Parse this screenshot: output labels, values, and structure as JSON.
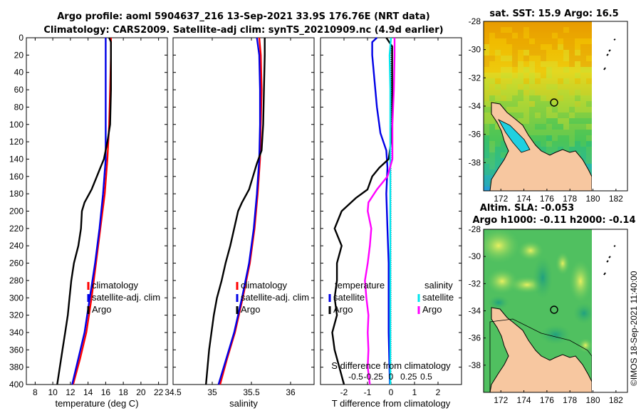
{
  "titles": {
    "line1": "Argo profile: aoml 5904637_216 13-Sep-2021 33.9S 176.76E (NRT data)",
    "line2": "Climatology: CARS2009. Satellite-adj clim: synTS_20210909.nc (4.9d earlier)"
  },
  "credit": "©IMOS 18-Sep-2021 11:40:00",
  "colors": {
    "climatology": "#ff0000",
    "satellite": "#0000e6",
    "argo": "#000000",
    "s_satellite": "#00e5ee",
    "s_argo": "#ff00ff"
  },
  "chart_data": [
    {
      "id": "temperature",
      "type": "line",
      "xlabel": "temperature (deg C)",
      "ylabel": "",
      "xlim": [
        7,
        23
      ],
      "ylim": [
        0,
        400
      ],
      "y_inverted": true,
      "xticks": [
        8,
        10,
        12,
        14,
        16,
        18,
        20,
        22
      ],
      "yticks": [
        0,
        20,
        40,
        60,
        80,
        100,
        120,
        140,
        160,
        180,
        200,
        220,
        240,
        260,
        280,
        300,
        320,
        340,
        360,
        380,
        400
      ],
      "legend": [
        "climatology",
        "satellite-adj. clim",
        "Argo"
      ],
      "series": [
        {
          "name": "climatology",
          "color": "#ff0000",
          "points": [
            [
              16.6,
              0
            ],
            [
              16.6,
              20
            ],
            [
              16.5,
              60
            ],
            [
              16.4,
              100
            ],
            [
              16.2,
              140
            ],
            [
              15.9,
              180
            ],
            [
              15.4,
              220
            ],
            [
              14.9,
              260
            ],
            [
              14.4,
              300
            ],
            [
              13.8,
              340
            ],
            [
              13.1,
              370
            ],
            [
              12.3,
              400
            ]
          ]
        },
        {
          "name": "satellite-adj. clim",
          "color": "#0000e6",
          "points": [
            [
              16.0,
              0
            ],
            [
              16.0,
              20
            ],
            [
              16.0,
              60
            ],
            [
              16.0,
              100
            ],
            [
              16.0,
              140
            ],
            [
              15.7,
              180
            ],
            [
              15.3,
              220
            ],
            [
              14.8,
              260
            ],
            [
              14.2,
              300
            ],
            [
              13.6,
              340
            ],
            [
              12.9,
              370
            ],
            [
              12.2,
              400
            ]
          ]
        },
        {
          "name": "Argo",
          "color": "#000000",
          "points": [
            [
              16.4,
              0
            ],
            [
              16.6,
              5
            ],
            [
              16.6,
              20
            ],
            [
              16.6,
              60
            ],
            [
              16.5,
              100
            ],
            [
              16.2,
              120
            ],
            [
              15.8,
              140
            ],
            [
              15.4,
              150
            ],
            [
              15.0,
              160
            ],
            [
              14.4,
              175
            ],
            [
              13.6,
              190
            ],
            [
              13.3,
              200
            ],
            [
              13.2,
              220
            ],
            [
              12.9,
              240
            ],
            [
              12.4,
              260
            ],
            [
              12.1,
              280
            ],
            [
              11.9,
              300
            ],
            [
              11.7,
              320
            ],
            [
              11.4,
              340
            ],
            [
              11.1,
              360
            ],
            [
              10.8,
              380
            ],
            [
              10.5,
              400
            ]
          ]
        }
      ]
    },
    {
      "id": "salinity",
      "type": "line",
      "xlabel": "salinity",
      "xlim": [
        34.5,
        36.3
      ],
      "ylim": [
        0,
        400
      ],
      "y_inverted": true,
      "xticks": [
        34.5,
        35,
        35.5,
        36
      ],
      "xtick_labels": [
        "34.5",
        "35",
        "35.5",
        "36"
      ],
      "legend": [
        "climatology",
        "satellite-adj. clim",
        "Argo"
      ],
      "series": [
        {
          "name": "climatology",
          "color": "#ff0000",
          "points": [
            [
              35.6,
              0
            ],
            [
              35.62,
              20
            ],
            [
              35.63,
              60
            ],
            [
              35.62,
              100
            ],
            [
              35.61,
              140
            ],
            [
              35.58,
              180
            ],
            [
              35.54,
              220
            ],
            [
              35.48,
              260
            ],
            [
              35.39,
              300
            ],
            [
              35.29,
              340
            ],
            [
              35.19,
              370
            ],
            [
              35.1,
              400
            ]
          ]
        },
        {
          "name": "satellite-adj. clim",
          "color": "#0000e6",
          "points": [
            [
              35.57,
              0
            ],
            [
              35.6,
              20
            ],
            [
              35.61,
              60
            ],
            [
              35.61,
              100
            ],
            [
              35.6,
              140
            ],
            [
              35.57,
              180
            ],
            [
              35.53,
              220
            ],
            [
              35.47,
              260
            ],
            [
              35.38,
              300
            ],
            [
              35.28,
              340
            ],
            [
              35.18,
              370
            ],
            [
              35.08,
              400
            ]
          ]
        },
        {
          "name": "Argo",
          "color": "#000000",
          "points": [
            [
              35.67,
              0
            ],
            [
              35.67,
              20
            ],
            [
              35.66,
              60
            ],
            [
              35.65,
              100
            ],
            [
              35.63,
              130
            ],
            [
              35.57,
              145
            ],
            [
              35.52,
              160
            ],
            [
              35.47,
              175
            ],
            [
              35.38,
              190
            ],
            [
              35.33,
              200
            ],
            [
              35.28,
              220
            ],
            [
              35.23,
              240
            ],
            [
              35.17,
              260
            ],
            [
              35.12,
              280
            ],
            [
              35.06,
              300
            ],
            [
              35.02,
              320
            ],
            [
              34.99,
              340
            ],
            [
              34.96,
              360
            ],
            [
              34.94,
              380
            ],
            [
              34.92,
              400
            ]
          ]
        }
      ]
    },
    {
      "id": "difference",
      "type": "line",
      "xlabel": "T difference from climatology",
      "x2label": "S difference from climatology",
      "xlim": [
        -3,
        3
      ],
      "x2lim": [
        -1,
        1
      ],
      "ylim": [
        0,
        400
      ],
      "y_inverted": true,
      "xticks": [
        -2,
        -1,
        0,
        1,
        2
      ],
      "x2ticks": [
        -0.5,
        -0.25,
        0,
        0.25,
        0.5
      ],
      "x2tick_labels": [
        "-0.5",
        "-0.25",
        "0",
        "0.25",
        "0.5"
      ],
      "legend_titles": [
        "temperature",
        "salinity"
      ],
      "legend": [
        "satellite",
        "Argo",
        "satellite",
        "Argo"
      ],
      "series": [
        {
          "name": "T satellite",
          "color": "#0000e6",
          "points": [
            [
              -0.6,
              0
            ],
            [
              -0.8,
              5
            ],
            [
              -0.8,
              20
            ],
            [
              -0.7,
              50
            ],
            [
              -0.6,
              80
            ],
            [
              -0.45,
              110
            ],
            [
              -0.2,
              130
            ],
            [
              -0.15,
              150
            ],
            [
              -0.2,
              180
            ],
            [
              -0.15,
              220
            ],
            [
              -0.1,
              260
            ],
            [
              -0.1,
              300
            ],
            [
              -0.1,
              340
            ],
            [
              -0.05,
              400
            ]
          ]
        },
        {
          "name": "T Argo",
          "color": "#000000",
          "points": [
            [
              -0.2,
              0
            ],
            [
              0.05,
              10
            ],
            [
              0.05,
              60
            ],
            [
              0.05,
              100
            ],
            [
              0.0,
              120
            ],
            [
              -0.1,
              140
            ],
            [
              -0.5,
              150
            ],
            [
              -0.8,
              160
            ],
            [
              -1.0,
              175
            ],
            [
              -1.5,
              185
            ],
            [
              -2.1,
              200
            ],
            [
              -2.4,
              220
            ],
            [
              -2.1,
              240
            ],
            [
              -2.3,
              260
            ],
            [
              -2.3,
              280
            ],
            [
              -2.4,
              300
            ],
            [
              -2.3,
              320
            ],
            [
              -2.5,
              340
            ],
            [
              -2.4,
              360
            ],
            [
              -2.2,
              380
            ],
            [
              -2.0,
              400
            ]
          ]
        },
        {
          "name": "S satellite",
          "color": "#00e5ee",
          "points": [
            [
              0.0,
              0
            ],
            [
              -0.02,
              20
            ],
            [
              -0.01,
              60
            ],
            [
              -0.01,
              100
            ],
            [
              -0.01,
              140
            ],
            [
              -0.01,
              180
            ],
            [
              -0.01,
              220
            ],
            [
              -0.01,
              260
            ],
            [
              -0.01,
              300
            ],
            [
              -0.01,
              340
            ],
            [
              -0.01,
              400
            ]
          ]
        },
        {
          "name": "S Argo",
          "color": "#ff00ff",
          "points": [
            [
              0.05,
              0
            ],
            [
              0.05,
              20
            ],
            [
              0.04,
              60
            ],
            [
              0.02,
              100
            ],
            [
              0.02,
              140
            ],
            [
              -0.05,
              160
            ],
            [
              -0.2,
              175
            ],
            [
              -0.32,
              190
            ],
            [
              -0.33,
              200
            ],
            [
              -0.28,
              220
            ],
            [
              -0.3,
              240
            ],
            [
              -0.33,
              260
            ],
            [
              -0.37,
              280
            ],
            [
              -0.35,
              300
            ],
            [
              -0.32,
              320
            ],
            [
              -0.33,
              340
            ],
            [
              -0.32,
              360
            ],
            [
              -0.33,
              380
            ],
            [
              -0.3,
              400
            ]
          ]
        }
      ]
    },
    {
      "id": "sst-map",
      "type": "heatmap",
      "title": "sat. SST: 15.9 Argo: 16.5",
      "xlim": [
        170.5,
        183
      ],
      "ylim": [
        -40,
        -28
      ],
      "xticks": [
        172,
        174,
        176,
        178,
        180,
        182
      ],
      "yticks": [
        -38,
        -36,
        -34,
        -32,
        -30,
        -28
      ]
    },
    {
      "id": "sla-map",
      "type": "heatmap",
      "title": "Altim. SLA: -0.053",
      "subtitle": "Argo h1000: -0.11 h2000: -0.14",
      "xlim": [
        170.5,
        183
      ],
      "ylim": [
        -40,
        -28
      ],
      "xticks": [
        172,
        174,
        176,
        178,
        180,
        182
      ],
      "yticks": [
        -38,
        -36,
        -34,
        -32,
        -30,
        -28
      ]
    }
  ]
}
